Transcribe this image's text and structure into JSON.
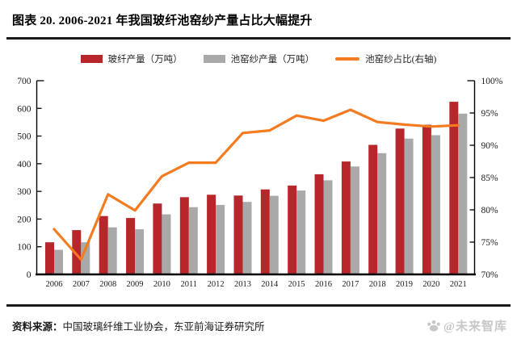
{
  "header": {
    "title": "图表 20. 2006-2021 年我国玻纤池窑纱产量占比大幅提升"
  },
  "chart_data": {
    "type": "combo",
    "categories": [
      "2006",
      "2007",
      "2008",
      "2009",
      "2010",
      "2011",
      "2012",
      "2013",
      "2014",
      "2015",
      "2016",
      "2017",
      "2018",
      "2019",
      "2020",
      "2021"
    ],
    "series": [
      {
        "key": "fiberglass-output",
        "name": "玻纤产量（万吨）",
        "type": "bar",
        "axis": "left",
        "color": "#b7262b",
        "values": [
          116,
          160,
          211,
          204,
          256,
          279,
          288,
          285,
          307,
          321,
          362,
          408,
          468,
          527,
          541,
          624
        ]
      },
      {
        "key": "pool-kiln-yarn-output",
        "name": "池窑纱产量（万吨）",
        "type": "bar",
        "axis": "left",
        "color": "#a9a9a9",
        "values": [
          89,
          116,
          170,
          163,
          217,
          243,
          251,
          262,
          284,
          303,
          340,
          390,
          438,
          491,
          503,
          581
        ]
      },
      {
        "key": "pool-kiln-ratio",
        "name": "池窑纱占比(右轴)",
        "type": "line",
        "axis": "right",
        "color": "#f47b20",
        "values": [
          77.0,
          72.3,
          82.4,
          79.9,
          85.2,
          87.3,
          87.3,
          91.9,
          92.3,
          94.6,
          93.8,
          95.5,
          93.6,
          93.2,
          92.9,
          93.1
        ]
      }
    ],
    "left_axis": {
      "min": 0,
      "max": 700,
      "step": 100,
      "tick_labels": [
        "0",
        "100",
        "200",
        "300",
        "400",
        "500",
        "600",
        "700"
      ]
    },
    "right_axis": {
      "min": 70,
      "max": 100,
      "step": 5,
      "tick_labels": [
        "70%",
        "75%",
        "80%",
        "85%",
        "90%",
        "95%",
        "100%"
      ]
    },
    "grid": false,
    "legend_position": "top",
    "title": "图表 20. 2006-2021 年我国玻纤池窑纱产量占比大幅提升"
  },
  "footer": {
    "source_label": "资料来源：",
    "source_text": "中国玻璃纤维工业协会，东亚前海证券研究所",
    "watermark": "@未来智库"
  }
}
